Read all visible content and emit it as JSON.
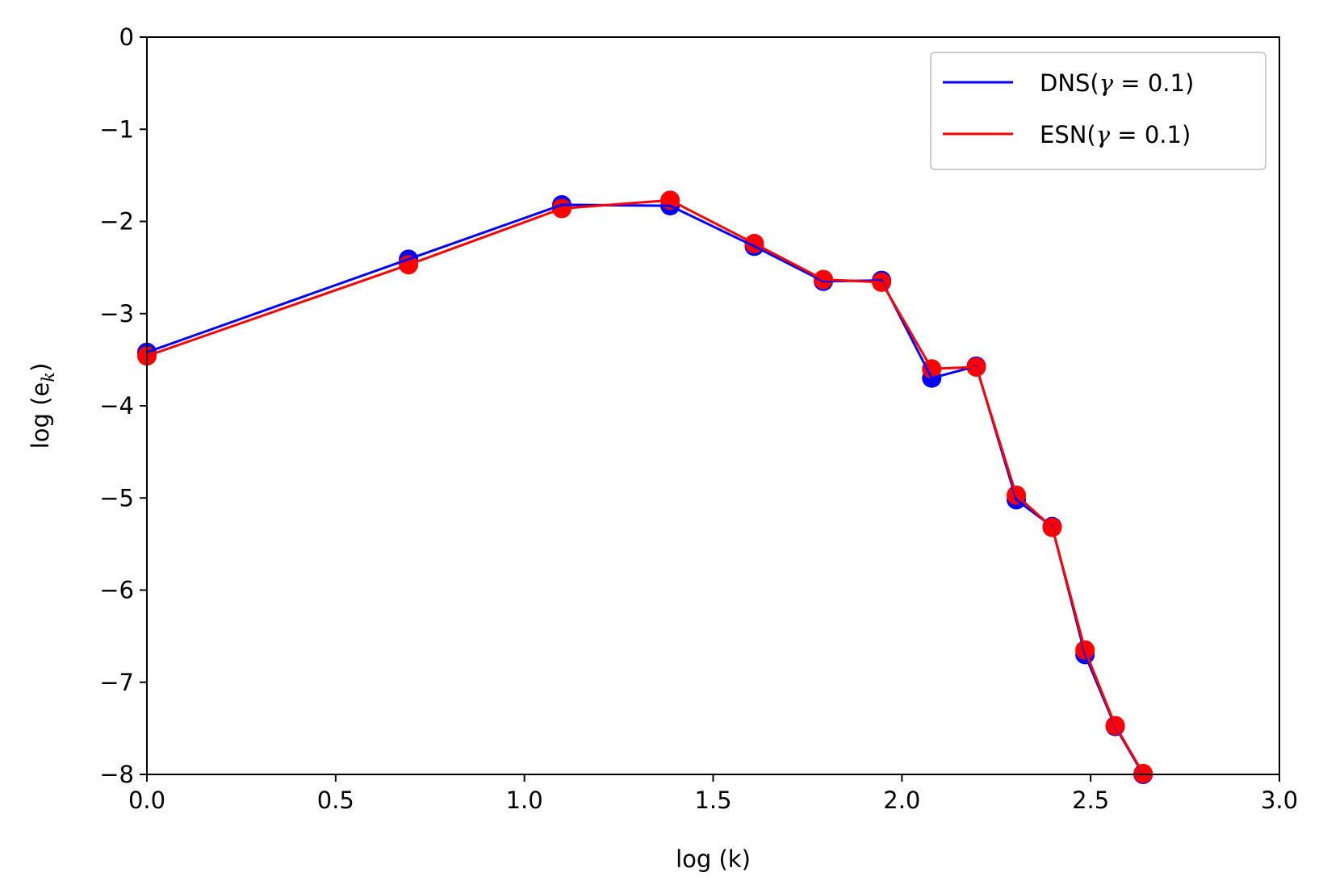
{
  "chart_data": {
    "type": "line",
    "xlabel": "log (k)",
    "ylabel_base": "log (e",
    "ylabel_sub": "k",
    "ylabel_close": ")",
    "xlim": [
      0,
      3
    ],
    "ylim": [
      -8,
      0
    ],
    "x_ticks": [
      0.0,
      0.5,
      1.0,
      1.5,
      2.0,
      2.5,
      3.0
    ],
    "x_tick_labels": [
      "0.0",
      "0.5",
      "1.0",
      "1.5",
      "2.0",
      "2.5",
      "3.0"
    ],
    "y_ticks": [
      0,
      -1,
      -2,
      -3,
      -4,
      -5,
      -6,
      -7,
      -8
    ],
    "y_tick_labels": [
      "0",
      "−1",
      "−2",
      "−3",
      "−4",
      "−5",
      "−6",
      "−7",
      "−8"
    ],
    "grid": false,
    "legend_position": "top-right",
    "markers": "circle",
    "series": [
      {
        "name": "DNS(γ = 0.1)",
        "name_prefix": "DNS(",
        "name_math": "γ",
        "name_suffix": " = 0.1)",
        "color": "#0000ff",
        "x": [
          0.0,
          0.693,
          1.099,
          1.386,
          1.609,
          1.792,
          1.946,
          2.079,
          2.197,
          2.303,
          2.398,
          2.485,
          2.565,
          2.639
        ],
        "y": [
          -3.42,
          -2.41,
          -1.82,
          -1.83,
          -2.27,
          -2.65,
          -2.64,
          -3.7,
          -3.57,
          -5.02,
          -5.31,
          -6.7,
          -7.48,
          -8.0
        ]
      },
      {
        "name": "ESN(γ = 0.1)",
        "name_prefix": "ESN(",
        "name_math": "γ",
        "name_suffix": " = 0.1)",
        "color": "#ff0000",
        "x": [
          0.0,
          0.693,
          1.099,
          1.386,
          1.609,
          1.792,
          1.946,
          2.079,
          2.197,
          2.303,
          2.398,
          2.485,
          2.565,
          2.639
        ],
        "y": [
          -3.46,
          -2.47,
          -1.86,
          -1.77,
          -2.24,
          -2.63,
          -2.66,
          -3.6,
          -3.58,
          -4.97,
          -5.32,
          -6.65,
          -7.47,
          -7.99
        ]
      }
    ]
  }
}
